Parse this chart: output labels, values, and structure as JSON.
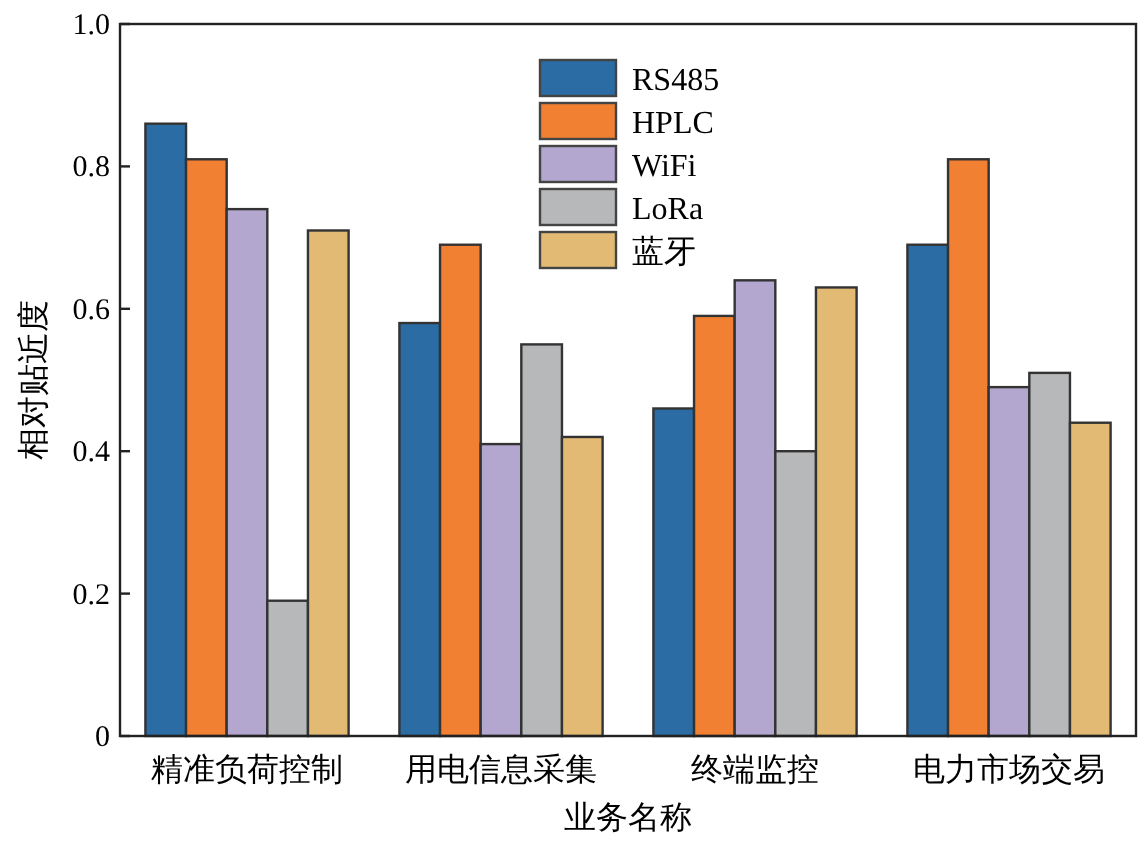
{
  "chart_data": {
    "type": "bar",
    "categories": [
      "精准负荷控制",
      "用电信息采集",
      "终端监控",
      "电力市场交易"
    ],
    "series": [
      {
        "name": "RS485",
        "color": "#2a6ca3",
        "values": [
          0.86,
          0.58,
          0.46,
          0.69
        ]
      },
      {
        "name": "HPLC",
        "color": "#f28032",
        "values": [
          0.81,
          0.69,
          0.59,
          0.81
        ]
      },
      {
        "name": "WiFi",
        "color": "#b3a6cf",
        "values": [
          0.74,
          0.41,
          0.64,
          0.49
        ]
      },
      {
        "name": "LoRa",
        "color": "#b7b8ba",
        "values": [
          0.19,
          0.55,
          0.4,
          0.51
        ]
      },
      {
        "name": "蓝牙",
        "color": "#e2ba74",
        "values": [
          0.71,
          0.42,
          0.63,
          0.44
        ]
      }
    ],
    "xlabel": "业务名称",
    "ylabel": "相对贴近度",
    "ylim": [
      0,
      1.0
    ],
    "yticks": [
      0,
      0.2,
      0.4,
      0.6,
      0.8,
      {
        "value": 1.0,
        "label": "1.0"
      }
    ],
    "legend": "top",
    "grid": false
  }
}
